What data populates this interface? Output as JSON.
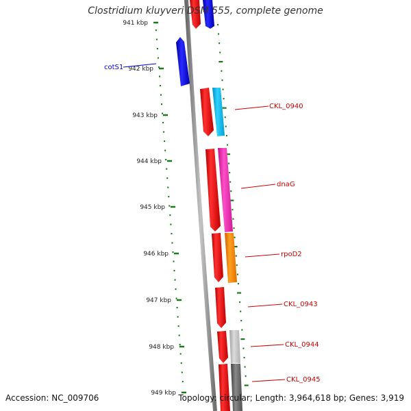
{
  "header": {
    "title": "Clostridium kluyveri DSM 555, complete genome"
  },
  "footer": {
    "accession": "Accession: NC_009706",
    "summary": "Topology: circular; Length: 3,964,618 bp; Genes: 3,919"
  },
  "colors": {
    "backbone": "#8a8a8a",
    "tick": "#1a7a1a",
    "forward_label": "#cc0000",
    "reverse_label": "#0000cc"
  },
  "scale_labels": [
    "941 kbp",
    "942 kbp",
    "943 kbp",
    "944 kbp",
    "945 kbp",
    "946 kbp",
    "947 kbp",
    "948 kbp",
    "949 kbp"
  ],
  "gene_labels": [
    {
      "text": "cotS1",
      "strand": "reverse"
    },
    {
      "text": "CKL_0940",
      "strand": "forward"
    },
    {
      "text": "dnaG",
      "strand": "forward"
    },
    {
      "text": "rpoD2",
      "strand": "forward"
    },
    {
      "text": "CKL_0943",
      "strand": "forward"
    },
    {
      "text": "CKL_0944",
      "strand": "forward"
    },
    {
      "text": "CKL_0945",
      "strand": "forward"
    }
  ]
}
